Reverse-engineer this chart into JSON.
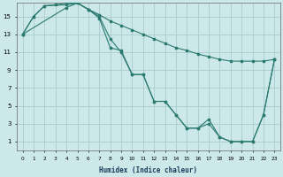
{
  "xlabel": "Humidex (Indice chaleur)",
  "bg_color": "#cce8e8",
  "grid_color": "#aacccc",
  "line_color": "#2a7a70",
  "xlim": [
    -0.5,
    23.5
  ],
  "ylim": [
    0.0,
    16.5
  ],
  "xticks": [
    0,
    1,
    2,
    3,
    4,
    5,
    6,
    7,
    8,
    9,
    10,
    11,
    12,
    13,
    14,
    15,
    16,
    17,
    18,
    19,
    20,
    21,
    22,
    23
  ],
  "yticks": [
    1,
    3,
    5,
    7,
    9,
    11,
    13,
    15
  ],
  "line1_x": [
    0,
    1,
    2,
    3,
    4,
    5,
    6,
    7,
    8,
    9,
    10,
    11,
    12,
    13,
    14,
    15,
    16,
    17,
    18,
    19,
    20,
    21,
    22,
    23
  ],
  "line1_y": [
    13,
    15,
    16.2,
    16.3,
    16.5,
    16.5,
    15.8,
    15.2,
    14.5,
    14.0,
    13.5,
    13.0,
    12.5,
    12.0,
    11.5,
    11.2,
    10.8,
    10.5,
    10.2,
    10.0,
    10.0,
    10.0,
    10.0,
    10.2
  ],
  "line2_x": [
    0,
    1,
    2,
    4,
    5,
    6,
    7,
    8,
    9,
    10,
    11,
    12,
    13,
    14,
    15,
    16,
    17,
    18,
    19,
    20,
    21,
    22,
    23
  ],
  "line2_y": [
    13,
    15,
    16.2,
    16.3,
    16.5,
    15.8,
    14.8,
    11.5,
    11.2,
    8.5,
    8.5,
    5.5,
    5.5,
    4.0,
    2.5,
    2.5,
    3.5,
    1.5,
    1.0,
    1.0,
    1.0,
    4.0,
    10.2
  ],
  "line3_x": [
    0,
    4,
    5,
    6,
    7,
    8,
    9,
    10,
    11,
    12,
    13,
    14,
    15,
    16,
    17,
    18,
    19,
    20,
    21,
    22,
    23
  ],
  "line3_y": [
    13,
    16.0,
    16.5,
    15.8,
    15.0,
    12.5,
    11.0,
    8.5,
    8.5,
    5.5,
    5.5,
    4.0,
    2.5,
    2.5,
    3.0,
    1.5,
    1.0,
    1.0,
    1.0,
    4.0,
    10.2
  ]
}
